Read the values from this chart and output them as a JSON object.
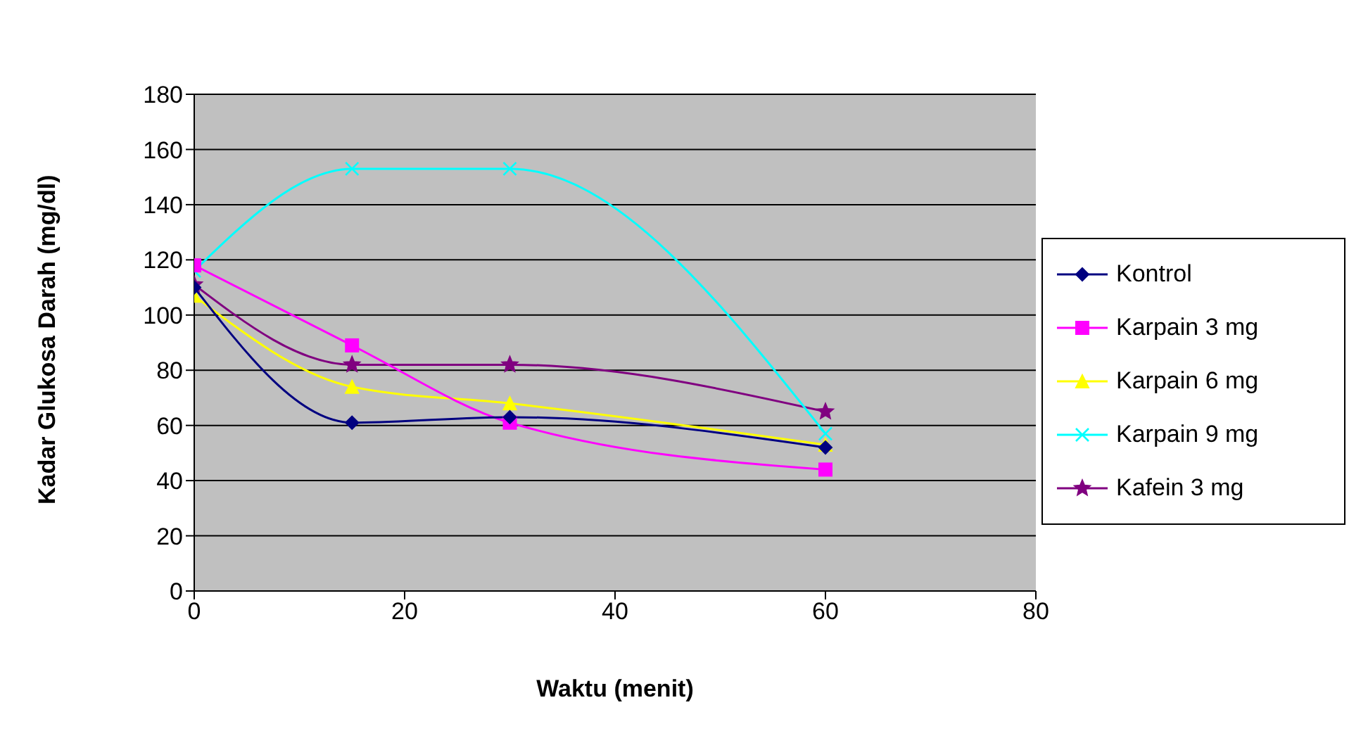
{
  "chart_data": {
    "type": "line",
    "xlabel": "Waktu (menit)",
    "ylabel": "Kadar Glukosa Darah (mg/dl)",
    "xlim": [
      0,
      80
    ],
    "xticks": [
      0,
      20,
      40,
      60,
      80
    ],
    "ylim": [
      0,
      180
    ],
    "yticks": [
      0,
      20,
      40,
      60,
      80,
      100,
      120,
      140,
      160,
      180
    ],
    "grid": "y",
    "legend": "right",
    "x": [
      0,
      15,
      30,
      60
    ],
    "series": [
      {
        "name": "Kontrol",
        "color": "#000080",
        "marker": "diamond",
        "values": [
          110,
          61,
          63,
          52
        ]
      },
      {
        "name": "Karpain 3 mg",
        "color": "#ff00ff",
        "marker": "square",
        "values": [
          118,
          89,
          61,
          44
        ]
      },
      {
        "name": "Karpain 6 mg",
        "color": "#ffff00",
        "marker": "triangle",
        "values": [
          107,
          74,
          68,
          53
        ]
      },
      {
        "name": "Karpain 9 mg",
        "color": "#00ffff",
        "marker": "cross",
        "values": [
          116,
          153,
          153,
          57
        ]
      },
      {
        "name": "Kafein 3 mg",
        "color": "#800080",
        "marker": "star",
        "values": [
          111,
          82,
          82,
          65
        ]
      }
    ]
  }
}
